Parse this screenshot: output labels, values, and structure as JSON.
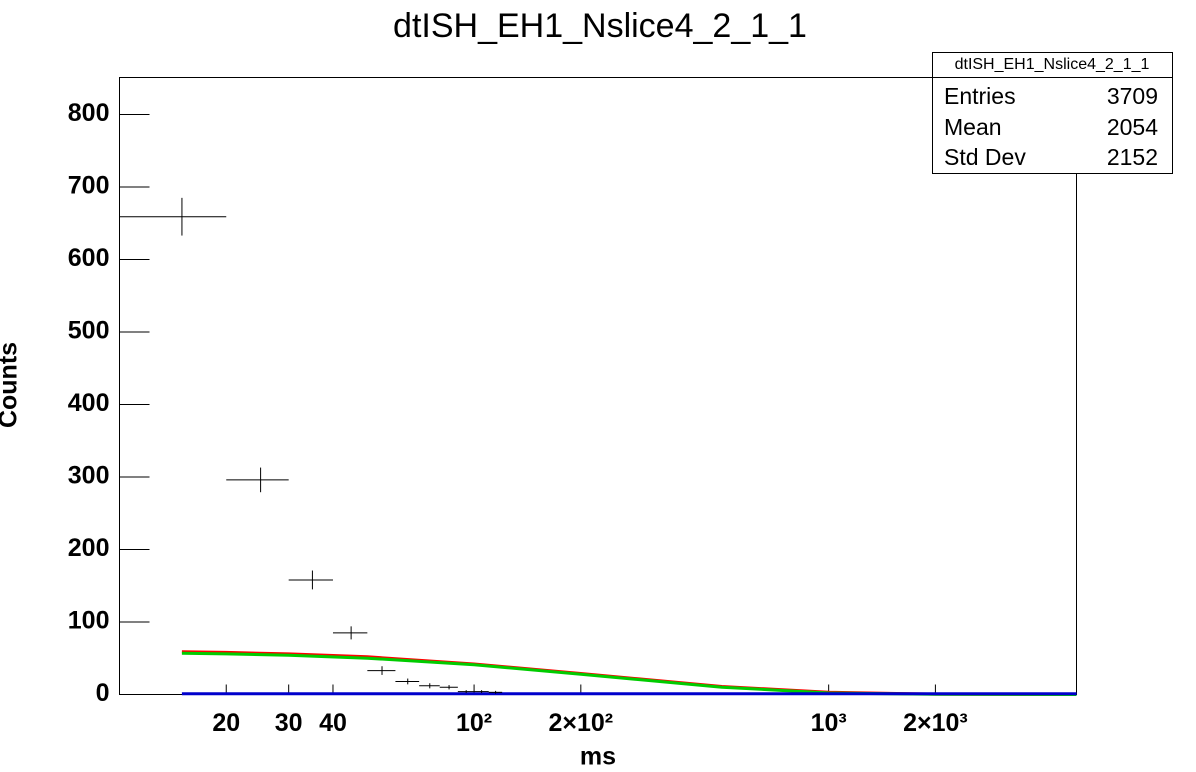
{
  "chart_data": {
    "type": "histogram",
    "title": "dtISH_EH1_Nslice4_2_1_1",
    "x_label": "ms",
    "y_label": "Counts",
    "x_log": true,
    "xlim": [
      10,
      5000
    ],
    "ylim": [
      0,
      851
    ],
    "xticks": [
      {
        "value": 20,
        "label": "20"
      },
      {
        "value": 30,
        "label": "30"
      },
      {
        "value": 40,
        "label": "40"
      },
      {
        "value": 100,
        "label": "10²"
      },
      {
        "value": 200,
        "label": "2×10²"
      },
      {
        "value": 1000,
        "label": "10³"
      },
      {
        "value": 2000,
        "label": "2×10³"
      }
    ],
    "yticks": [
      0,
      100,
      200,
      300,
      400,
      500,
      600,
      700,
      800
    ],
    "bins": [
      10,
      20,
      30,
      40,
      50,
      60,
      70,
      80,
      90,
      100,
      110,
      120
    ],
    "values": [
      659,
      296,
      158,
      85,
      33,
      18,
      12,
      10,
      4,
      4,
      3
    ],
    "errors": [
      26,
      17,
      13,
      9,
      6,
      4,
      3.5,
      3,
      2,
      2,
      2
    ],
    "color": "#000000",
    "curves": [
      {
        "color": "#ff0000",
        "x": [
          15,
          20,
          30,
          50,
          100,
          200,
          300,
          500,
          1000,
          2000,
          5000
        ],
        "values": [
          59,
          58,
          56,
          52,
          42,
          29,
          21,
          11,
          3,
          0.5,
          0
        ]
      },
      {
        "color": "#00cc00",
        "x": [
          15,
          20,
          30,
          50,
          100,
          200,
          300,
          500,
          1000,
          2000,
          5000
        ],
        "values": [
          57,
          56,
          54,
          50,
          41,
          28,
          20,
          10,
          2,
          0.3,
          0
        ]
      },
      {
        "color": "#0000cc",
        "x": [
          15,
          20,
          30,
          50,
          100,
          200,
          300,
          500,
          1000,
          2000,
          5000
        ],
        "values": [
          1,
          1,
          1,
          1,
          1,
          1,
          1,
          1,
          1,
          1,
          1
        ]
      }
    ],
    "stats": {
      "title": "dtISH_EH1_Nslice4_2_1_1",
      "rows": [
        {
          "label": "Entries",
          "value": 3709
        },
        {
          "label": "Mean",
          "value": 2054
        },
        {
          "label": "Std Dev",
          "value": 2152
        }
      ]
    }
  }
}
